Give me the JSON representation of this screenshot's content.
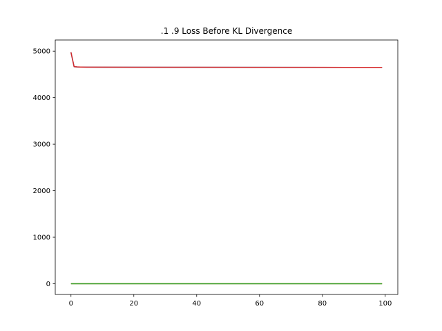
{
  "chart_data": {
    "type": "line",
    "title": ".1 .9 Loss Before KL Divergence",
    "xlabel": "",
    "ylabel": "",
    "xlim": [
      -5,
      104
    ],
    "ylim": [
      -230,
      5240
    ],
    "x_ticks": [
      0,
      20,
      40,
      60,
      80,
      100
    ],
    "y_ticks": [
      0,
      1000,
      2000,
      3000,
      4000,
      5000
    ],
    "grid": false,
    "legend": "none",
    "series": [
      {
        "color": "#1f77b4",
        "x": [
          0,
          1,
          2,
          3,
          5,
          10,
          20,
          40,
          60,
          80,
          99
        ],
        "y": [
          4975,
          4665,
          4660,
          4658,
          4656,
          4655,
          4654,
          4653,
          4652,
          4651,
          4650
        ]
      },
      {
        "color": "#ff7f0e",
        "x": [
          0,
          99
        ],
        "y": [
          1,
          1
        ]
      },
      {
        "color": "#2ca02c",
        "x": [
          0,
          99
        ],
        "y": [
          0,
          0
        ]
      },
      {
        "color": "#d62728",
        "x": [
          0,
          1,
          2,
          3,
          5,
          10,
          20,
          40,
          60,
          80,
          99
        ],
        "y": [
          4976,
          4666,
          4661,
          4659,
          4657,
          4656,
          4655,
          4654,
          4653,
          4652,
          4651
        ]
      }
    ]
  }
}
